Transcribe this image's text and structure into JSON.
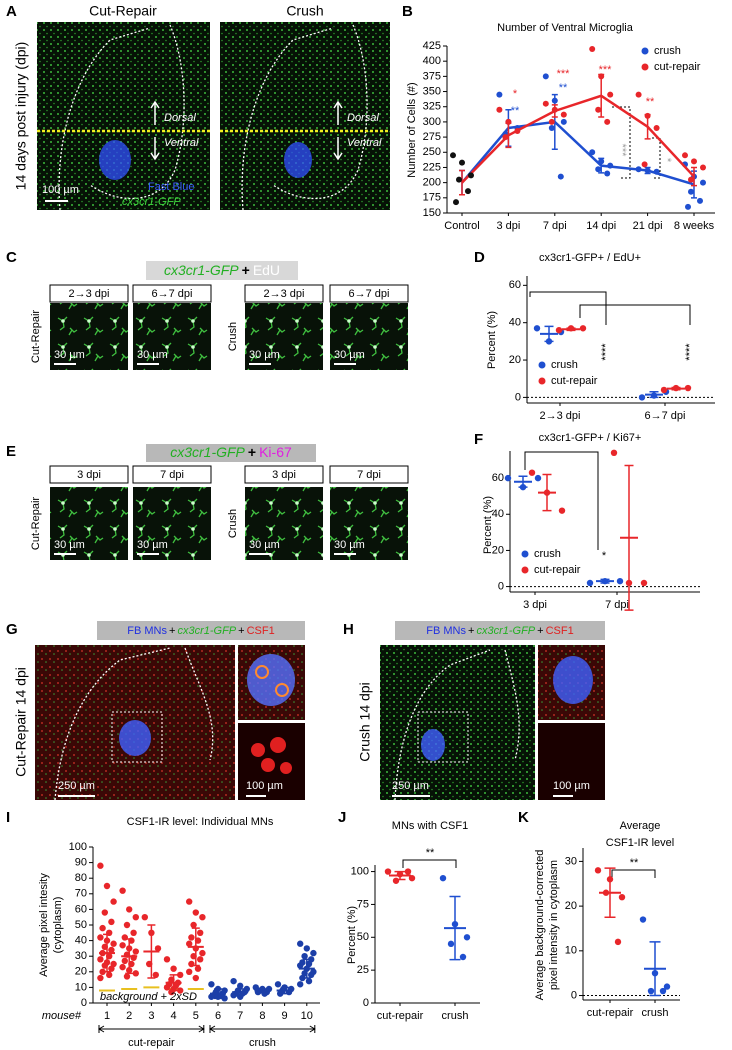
{
  "letters": [
    "A",
    "B",
    "C",
    "D",
    "E",
    "F",
    "G",
    "H",
    "I",
    "J",
    "K"
  ],
  "panels": {
    "A": {
      "titles": [
        "Cut-Repair",
        "Crush"
      ],
      "side_label": "14 days post injury (dpi)",
      "dorsal": [
        "Dorsal",
        "Dorsal"
      ],
      "ventral": [
        "Ventral",
        "Ventral"
      ],
      "scale": "100 µm",
      "legend_blue": "Fast Blue",
      "legend_green": "cx3cr1-GFP"
    },
    "C": {
      "header": [
        "cx3cr1-GFP",
        "+",
        "EdU"
      ],
      "time_labels": [
        "2→3 dpi",
        "6→7 dpi",
        "2→3 dpi",
        "6→7 dpi"
      ],
      "row_labels": [
        "Cut-Repair",
        "Crush"
      ],
      "scales": [
        "30 µm",
        "30 µm",
        "30 µm",
        "30 µm"
      ]
    },
    "E": {
      "header": [
        "cx3cr1-GFP",
        "+",
        "Ki-67"
      ],
      "time_labels": [
        "3 dpi",
        "7 dpi",
        "3 dpi",
        "7 dpi"
      ],
      "row_labels": [
        "Cut-Repair",
        "Crush"
      ],
      "scales": [
        "30 µm",
        "30 µm",
        "30 µm",
        "30 µm"
      ]
    },
    "G": {
      "header": [
        "FB MNs",
        "+",
        "cx3cr1-GFP",
        "+",
        "CSF1"
      ],
      "side_label": "Cut-Repair 14 dpi",
      "scales": [
        "250 µm",
        "100 µm"
      ]
    },
    "H": {
      "header": [
        "FB MNs",
        "+",
        "cx3cr1-GFP",
        "+",
        "CSF1"
      ],
      "side_label": "Crush 14 dpi",
      "scales": [
        "250 µm",
        "100 µm"
      ]
    }
  },
  "chart_data": [
    {
      "type": "line",
      "title": "Number of Ventral Microglia",
      "ylabel": "Number of Cells (#)",
      "categories": [
        "Control",
        "3 dpi",
        "7 dpi",
        "14 dpi",
        "21 dpi",
        "8 weeks"
      ],
      "ylim": [
        150,
        425
      ],
      "yticks": [
        150,
        175,
        200,
        225,
        250,
        275,
        300,
        325,
        350,
        375,
        400,
        425
      ],
      "legend": "upper right",
      "control_color": "#111111",
      "control_points": [
        245,
        233,
        212,
        205,
        186,
        168
      ],
      "series": [
        {
          "name": "crush",
          "color": "#1f4fd0",
          "values": [
            200,
            290,
            300,
            228,
            220,
            197
          ],
          "sd": [
            20,
            30,
            45,
            12,
            5,
            22
          ],
          "points": [
            null,
            [
              345,
              300,
              290,
              280
            ],
            [
              375,
              335,
              300,
              290,
              210
            ],
            [
              250,
              235,
              228,
              222,
              215
            ],
            [
              222,
              220,
              218
            ],
            [
              230,
              210,
              200,
              185,
              170,
              160
            ]
          ]
        },
        {
          "name": "cut-repair",
          "color": "#e8262a",
          "values": [
            200,
            278,
            318,
            343,
            292,
            210
          ],
          "sd": [
            20,
            20,
            10,
            35,
            20,
            15
          ],
          "points": [
            null,
            [
              320,
              300,
              285,
              275
            ],
            [
              330,
              320,
              312,
              300
            ],
            [
              420,
              375,
              345,
              320,
              300
            ],
            [
              345,
              310,
              290,
              230
            ],
            [
              245,
              235,
              225,
              205
            ]
          ]
        }
      ],
      "annotations": [
        {
          "text": "*",
          "color": "#e8262a"
        },
        {
          "text": "**",
          "color": "#1f4fd0"
        },
        {
          "text": "***",
          "color": "#e8262a"
        },
        {
          "text": "**",
          "color": "#1f4fd0"
        },
        {
          "text": "***",
          "color": "#e8262a"
        },
        {
          "text": "**",
          "color": "#e8262a"
        },
        {
          "text": "***",
          "color": "#a0a0a0"
        },
        {
          "text": "*",
          "color": "#a0a0a0"
        }
      ]
    },
    {
      "type": "dot",
      "title": "cx3cr1-GFP+ / EdU+",
      "ylabel": "Percent (%)",
      "categories": [
        "2→3 dpi",
        "6→7 dpi"
      ],
      "ylim": [
        -3,
        65
      ],
      "yticks": [
        0,
        20,
        40,
        60
      ],
      "zero_line": true,
      "legend": "lower left",
      "series": [
        {
          "name": "crush",
          "color": "#1f4fd0",
          "points": [
            [
              37,
              30,
              35
            ],
            [
              0,
              1,
              3
            ]
          ],
          "mean": [
            34,
            1.5
          ],
          "sd": [
            4,
            1.5
          ]
        },
        {
          "name": "cut-repair",
          "color": "#e8262a",
          "points": [
            [
              36,
              37,
              37
            ],
            [
              4,
              5,
              5
            ]
          ],
          "mean": [
            36.5,
            4.7
          ],
          "sd": [
            0.6,
            0.6
          ]
        }
      ],
      "annotations": [
        {
          "text": "****"
        },
        {
          "text": "****"
        }
      ]
    },
    {
      "type": "dot",
      "title": "cx3cr1-GFP+ / Ki67+",
      "ylabel": "Percent (%)",
      "categories": [
        "3 dpi",
        "7 dpi"
      ],
      "ylim": [
        -3,
        75
      ],
      "yticks": [
        0,
        20,
        40,
        60
      ],
      "zero_line": true,
      "legend": "lower left",
      "series": [
        {
          "name": "crush",
          "color": "#1f4fd0",
          "points": [
            [
              60,
              55,
              60
            ],
            [
              2,
              3,
              3
            ]
          ],
          "mean": [
            58,
            3
          ],
          "sd": [
            3,
            1
          ]
        },
        {
          "name": "cut-repair",
          "color": "#e8262a",
          "points": [
            [
              63,
              52,
              42
            ],
            [
              74,
              2,
              2
            ]
          ],
          "mean": [
            52,
            27
          ],
          "sd": [
            10,
            40
          ]
        }
      ],
      "annotations": [
        {
          "text": "*"
        }
      ]
    },
    {
      "type": "dot",
      "title": "CSF1-IR level: Individual MNs",
      "ylabel": [
        "Average pixel intesity",
        "(cytoplasm)"
      ],
      "x_label": "mouse#",
      "categories": [
        "1",
        "2",
        "3",
        "4",
        "5",
        "6",
        "7",
        "8",
        "9",
        "10"
      ],
      "ylim": [
        0,
        100
      ],
      "yticks": [
        0,
        10,
        20,
        30,
        40,
        50,
        60,
        70,
        80,
        90,
        100
      ],
      "series": [
        {
          "name": "cut-repair",
          "color": "#e8262a",
          "points": [
            [
              88,
              75,
              65,
              58,
              52,
              48,
              45,
              42,
              40,
              38,
              36,
              34,
              32,
              30,
              28,
              26,
              25,
              24,
              22,
              20,
              18,
              16
            ],
            [
              72,
              60,
              55,
              50,
              45,
              42,
              40,
              37,
              35,
              33,
              31,
              29,
              27,
              25,
              23,
              21,
              19,
              17
            ],
            [
              55,
              45,
              35,
              25,
              18
            ],
            [
              28,
              22,
              18,
              15,
              13,
              12,
              11,
              10,
              9,
              8,
              7
            ],
            [
              65,
              58,
              55,
              50,
              45,
              42,
              40,
              38,
              35,
              32,
              30,
              28,
              25,
              22,
              20,
              16
            ],
            null,
            null,
            null,
            null,
            null
          ],
          "mean": [
            32,
            30,
            33,
            13,
            36,
            null,
            null,
            null,
            null,
            null
          ],
          "sd": [
            12,
            11,
            17,
            5,
            12,
            null,
            null,
            null,
            null,
            null
          ],
          "background": [
            8,
            9,
            10,
            9,
            9,
            null,
            null,
            null,
            null,
            null
          ],
          "background_color": "#e8c020"
        },
        {
          "name": "crush",
          "color": "#1c3fa8",
          "points": [
            null,
            null,
            null,
            null,
            null,
            [
              12,
              9,
              8,
              7,
              6,
              5,
              5,
              4,
              4,
              3
            ],
            [
              14,
              11,
              9,
              8,
              7,
              6,
              6,
              5,
              4
            ],
            [
              10,
              9,
              9,
              8,
              7,
              7,
              6
            ],
            [
              12,
              10,
              9,
              8,
              7,
              6
            ],
            [
              38,
              35,
              32,
              30,
              28,
              26,
              25,
              24,
              22,
              20,
              19,
              18,
              16,
              14,
              12
            ]
          ],
          "mean": [
            null,
            null,
            null,
            null,
            null,
            6,
            7,
            8,
            8,
            22
          ],
          "sd": [
            null,
            null,
            null,
            null,
            null,
            3,
            2,
            1,
            2,
            6
          ]
        }
      ],
      "annotations": [
        {
          "text": "background + 2xSD"
        }
      ]
    },
    {
      "type": "dot",
      "title": "MNs with CSF1",
      "ylabel": "Percent (%)",
      "categories": [
        "cut-repair",
        "crush"
      ],
      "ylim": [
        0,
        105
      ],
      "yticks": [
        0,
        25,
        50,
        75,
        100
      ],
      "series": [
        {
          "name": "cut-repair",
          "color": "#e8262a",
          "points": [
            [
              100,
              98,
              95,
              93,
              100
            ],
            null
          ],
          "mean": [
            97,
            null
          ],
          "sd": [
            3,
            null
          ]
        },
        {
          "name": "crush",
          "color": "#1f4fd0",
          "points": [
            null,
            [
              95,
              60,
              50,
              45,
              35
            ]
          ],
          "mean": [
            null,
            57
          ],
          "sd": [
            null,
            24
          ]
        }
      ],
      "annotations": [
        {
          "text": "**"
        }
      ]
    },
    {
      "type": "dot",
      "title": [
        "Average",
        "CSF1-IR level"
      ],
      "ylabel": [
        "Average background-corrected",
        "pixel intensity in cytoplasm"
      ],
      "categories": [
        "cut-repair",
        "crush"
      ],
      "ylim": [
        -1,
        33
      ],
      "yticks": [
        0,
        10,
        20,
        30
      ],
      "zero_line": true,
      "series": [
        {
          "name": "cut-repair",
          "color": "#e8262a",
          "points": [
            [
              28,
              26,
              22,
              23,
              12
            ],
            null
          ],
          "mean": [
            23,
            null
          ],
          "sd": [
            5.5,
            null
          ]
        },
        {
          "name": "crush",
          "color": "#1f4fd0",
          "points": [
            null,
            [
              17,
              5,
              2,
              1,
              1
            ]
          ],
          "mean": [
            null,
            6
          ],
          "sd": [
            null,
            6
          ]
        }
      ],
      "annotations": [
        {
          "text": "**"
        }
      ]
    }
  ]
}
